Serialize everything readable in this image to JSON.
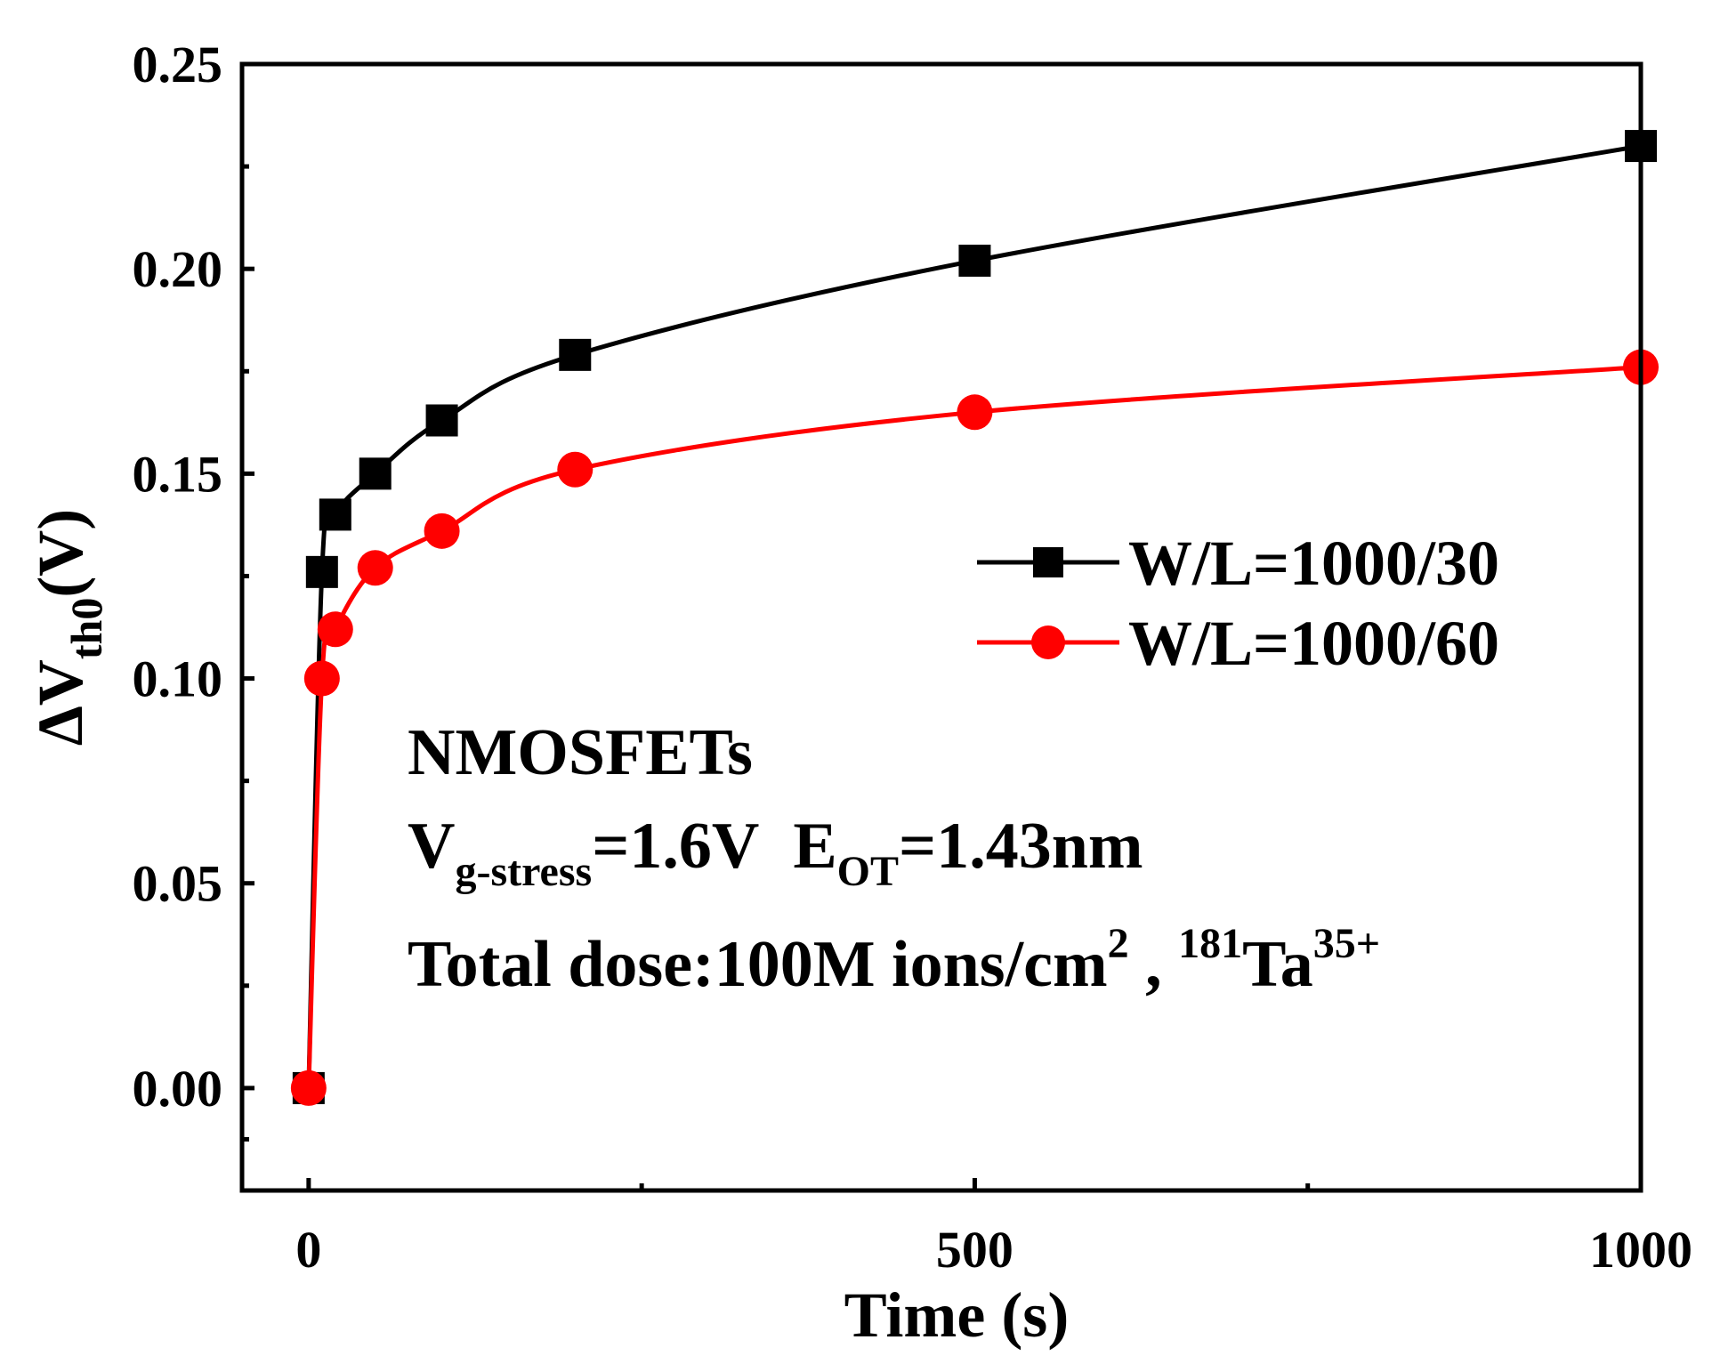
{
  "chart_data": {
    "type": "line",
    "title": "",
    "xlabel": "Time (s)",
    "ylabel": {
      "delta": "Δ",
      "main": "V",
      "sub": "th0",
      "tail": "(V)"
    },
    "xlim": [
      -50,
      1000
    ],
    "ylim": [
      -0.025,
      0.25
    ],
    "xticks": [
      0,
      500,
      1000
    ],
    "xtick_labels": [
      "0",
      "500",
      "1000"
    ],
    "xminor": [
      250,
      750
    ],
    "yticks": [
      0.0,
      0.05,
      0.1,
      0.15,
      0.2,
      0.25
    ],
    "ytick_labels": [
      "0.00",
      "0.05",
      "0.10",
      "0.15",
      "0.20",
      "0.25"
    ],
    "grid": false,
    "legend_position": "right",
    "series": [
      {
        "name": "W/L=1000/30",
        "color": "#000000",
        "marker": "square",
        "x": [
          0,
          10,
          20,
          50,
          100,
          200,
          500,
          1000
        ],
        "y": [
          0.0,
          0.126,
          0.14,
          0.15,
          0.163,
          0.179,
          0.202,
          0.23
        ]
      },
      {
        "name": "W/L=1000/60",
        "color": "#ff0000",
        "marker": "circle",
        "x": [
          0,
          10,
          20,
          50,
          100,
          200,
          500,
          1000
        ],
        "y": [
          0.0,
          0.1,
          0.112,
          0.127,
          0.136,
          0.151,
          0.165,
          0.176
        ]
      }
    ],
    "annotations": {
      "line1": "NMOSFETs",
      "line2": {
        "v": "V",
        "v_sub": "g-stress",
        "v_val": "=1.6V",
        "e": "E",
        "e_sub": "OT",
        "e_val": "=1.43nm"
      },
      "line3": {
        "text": "Total dose:100M ions/cm",
        "sup1": "2",
        "sep": " , ",
        "iso_sup": "181",
        "element": "Ta",
        "charge_sup": "35+"
      }
    }
  }
}
